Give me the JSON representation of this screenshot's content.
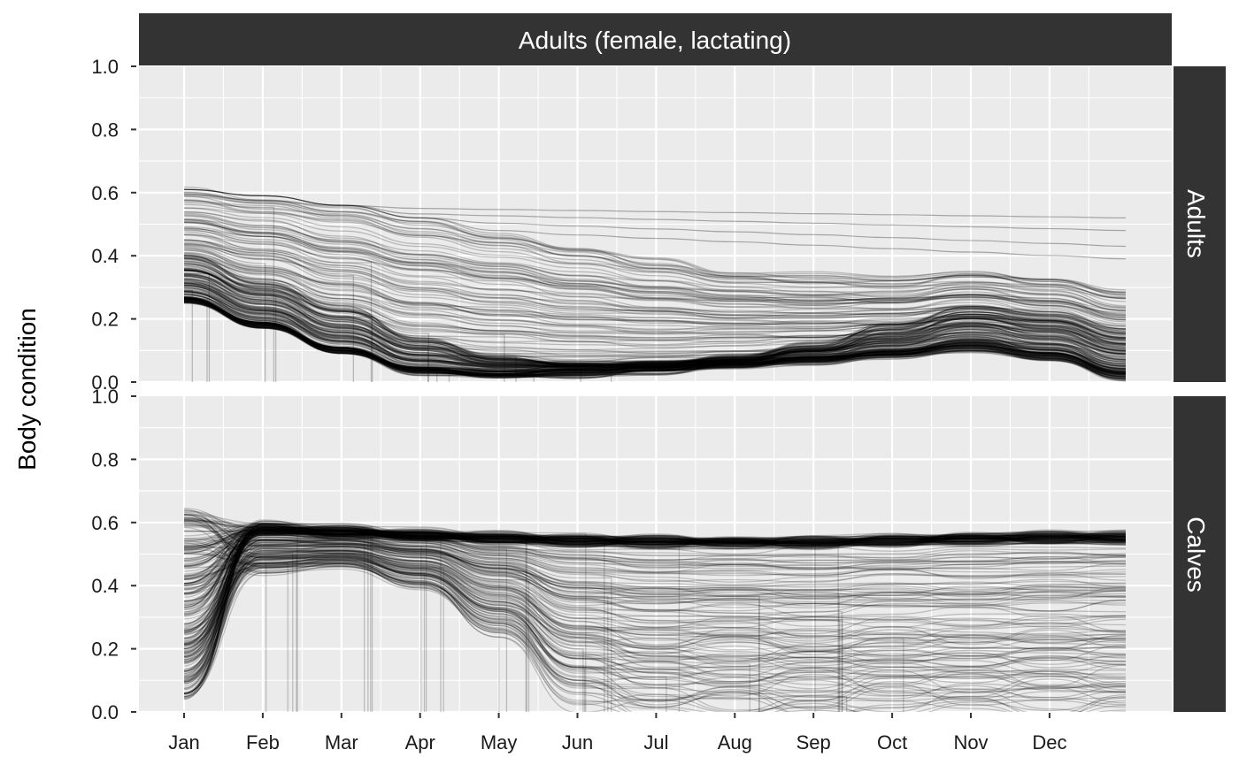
{
  "chart_data": {
    "type": "line",
    "facet_title": "Adults (female, lactating)",
    "ylabel": "Body condition",
    "xlabel": "",
    "ylim": [
      0,
      1
    ],
    "y_ticks": [
      "0.0",
      "0.2",
      "0.4",
      "0.6",
      "0.8",
      "1.0"
    ],
    "x_ticks": [
      "Jan",
      "Feb",
      "Mar",
      "Apr",
      "May",
      "Jun",
      "Jul",
      "Aug",
      "Sep",
      "Oct",
      "Nov",
      "Dec"
    ],
    "grid": true,
    "colors": {
      "panel_bg": "#ebebeb",
      "grid": "#ffffff",
      "strip_bg": "#333333",
      "line": "#000000"
    },
    "panels": [
      {
        "name": "Adults",
        "x": [
          "Jan",
          "Feb",
          "Mar",
          "Apr",
          "May",
          "Jun",
          "Jul",
          "Aug",
          "Sep",
          "Oct",
          "Nov",
          "Dec",
          "end"
        ],
        "envelope_upper": [
          0.62,
          0.6,
          0.57,
          0.53,
          0.49,
          0.44,
          0.4,
          0.36,
          0.35,
          0.34,
          0.36,
          0.34,
          0.3
        ],
        "envelope_lower": [
          0.26,
          0.18,
          0.1,
          0.03,
          0.02,
          0.02,
          0.03,
          0.05,
          0.06,
          0.08,
          0.1,
          0.07,
          0.01
        ],
        "dense_band_a": [
          0.4,
          0.32,
          0.24,
          0.14,
          0.08,
          0.06,
          0.06,
          0.08,
          0.12,
          0.18,
          0.24,
          0.22,
          0.16
        ],
        "dense_band_b": [
          0.26,
          0.18,
          0.1,
          0.04,
          0.03,
          0.04,
          0.05,
          0.06,
          0.08,
          0.1,
          0.13,
          0.1,
          0.04
        ],
        "outlier_lines": [
          {
            "start": 0.56,
            "end": 0.52
          },
          {
            "start": 0.55,
            "end": 0.48
          },
          {
            "start": 0.54,
            "end": 0.43
          },
          {
            "start": 0.52,
            "end": 0.39
          }
        ]
      },
      {
        "name": "Calves",
        "x": [
          "Jan",
          "Feb",
          "Mar",
          "Apr",
          "May",
          "Jun",
          "Jul",
          "Aug",
          "Sep",
          "Oct",
          "Nov",
          "Dec",
          "end"
        ],
        "start_range": [
          0.04,
          0.65
        ],
        "envelope_upper": [
          0.65,
          0.6,
          0.59,
          0.58,
          0.57,
          0.56,
          0.56,
          0.555,
          0.555,
          0.56,
          0.565,
          0.57,
          0.57
        ],
        "dense_band": [
          0.6,
          0.59,
          0.58,
          0.57,
          0.56,
          0.555,
          0.55,
          0.55,
          0.55,
          0.555,
          0.56,
          0.565,
          0.565
        ],
        "lower_trajectories_peak": [
          0.04,
          0.43,
          0.45,
          0.38,
          0.22,
          0.05,
          0.0,
          0.0,
          0.0,
          0.0,
          0.0,
          0.0,
          0.0
        ]
      }
    ]
  }
}
